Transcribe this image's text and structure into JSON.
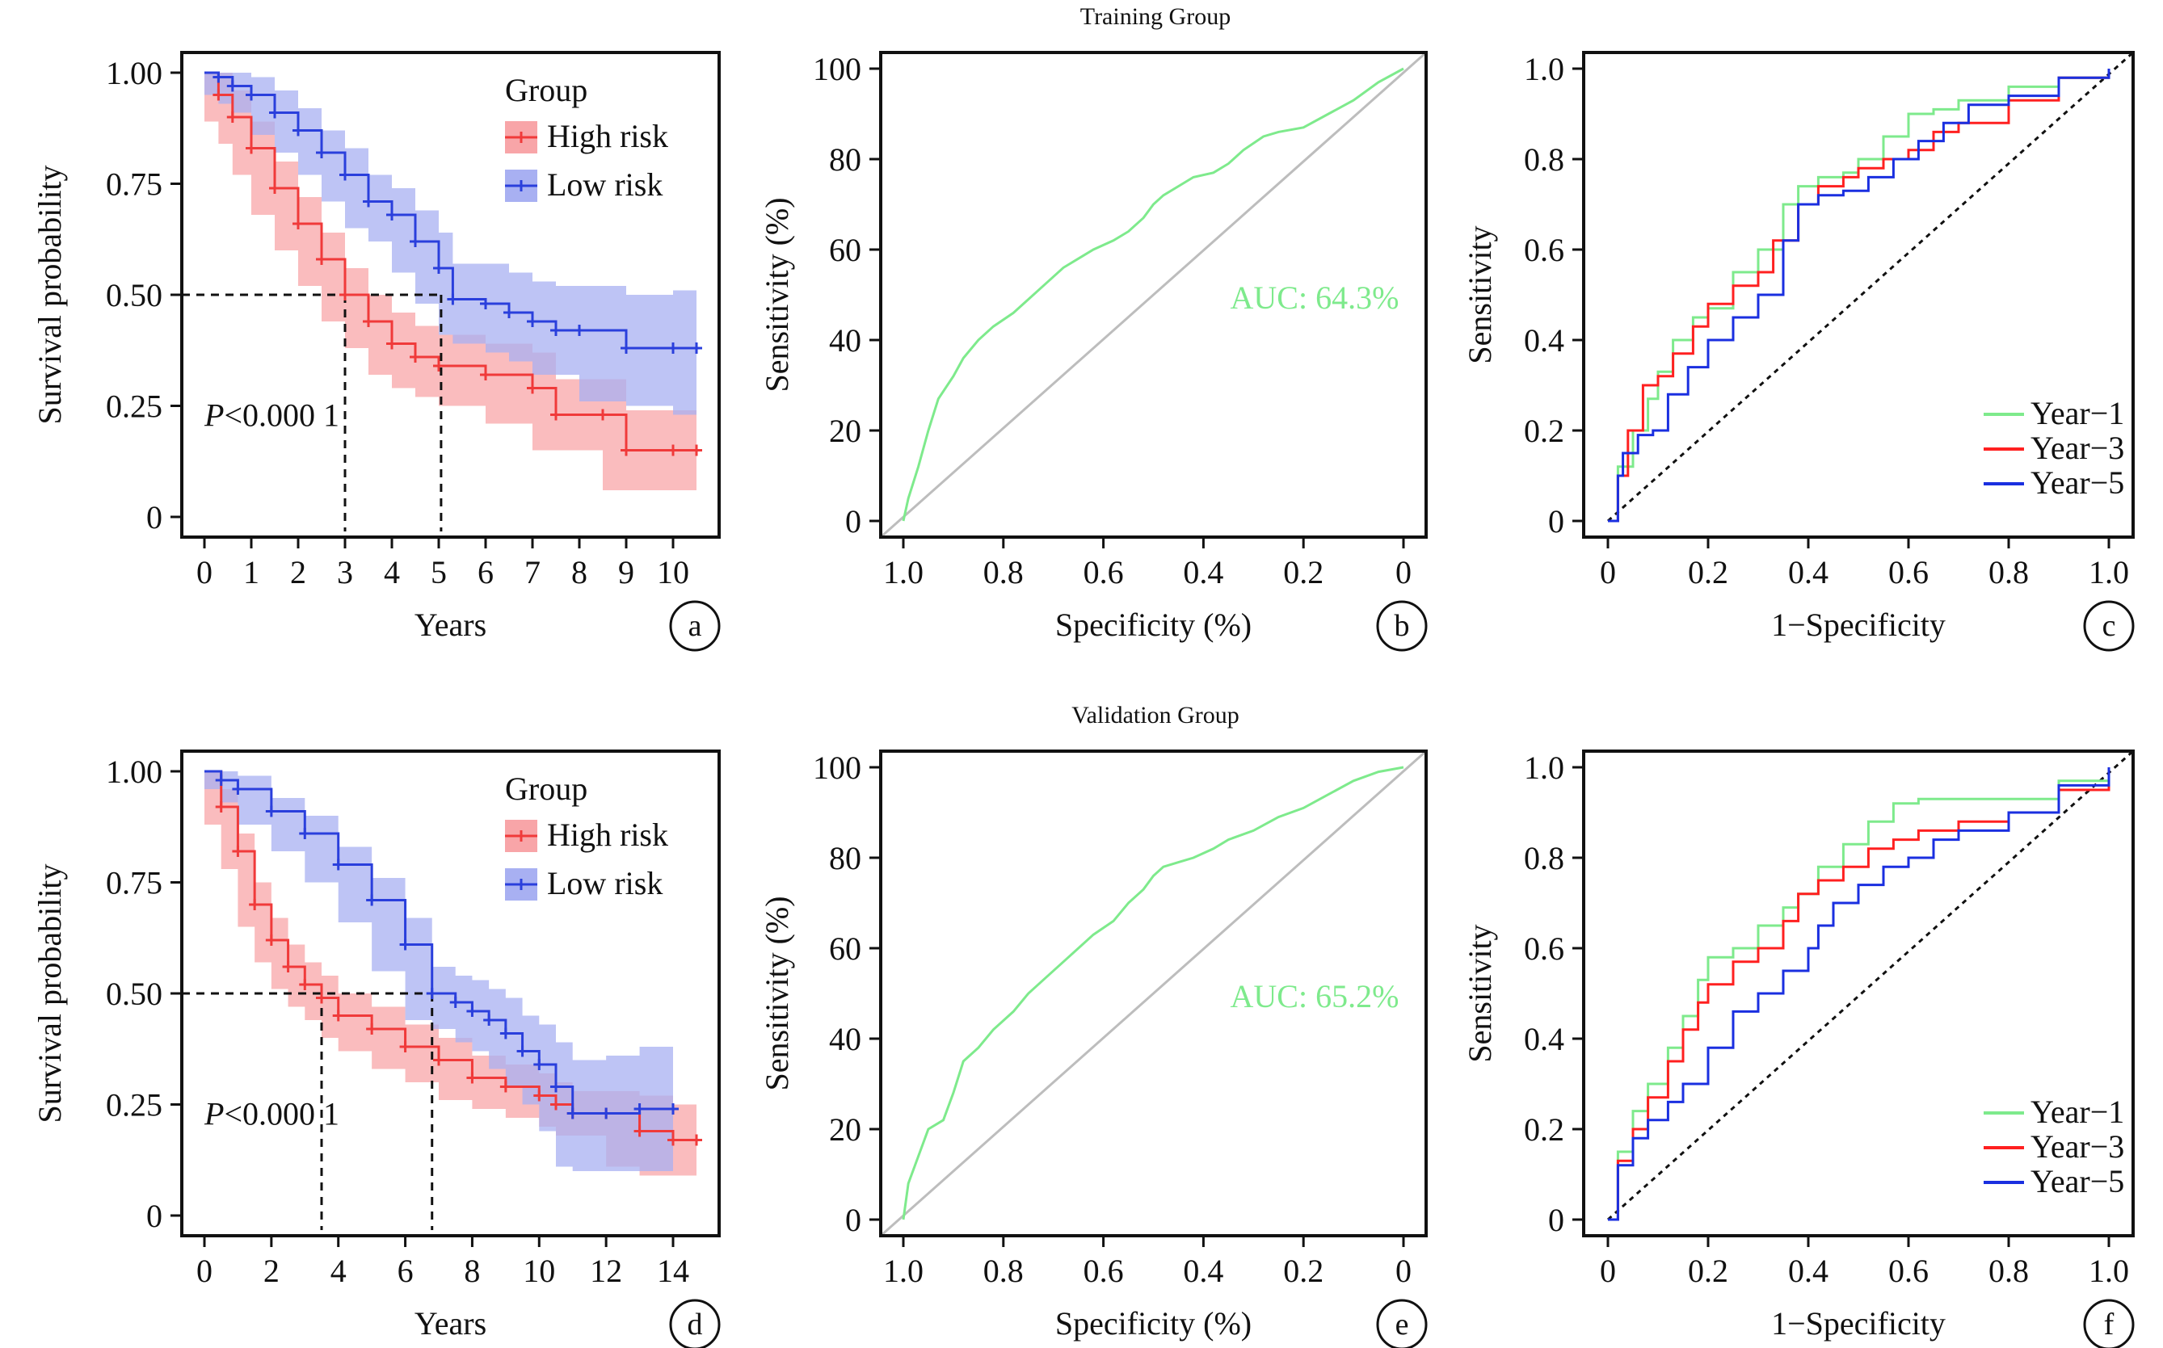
{
  "group_titles": {
    "top": "Training Group",
    "bottom": "Validation Group"
  },
  "colors": {
    "high": "#f03a3a",
    "high_band": "#f8a5a8",
    "low": "#2a3fdc",
    "low_band": "#a8b0f2",
    "overlap": "#a48fc0",
    "auc": "#7eea8c",
    "year1": "#7eea8c",
    "year3": "#ff2020",
    "year5": "#1a2fe0",
    "diag": "#bdbdbd"
  },
  "chart_data": [
    {
      "panel": "a",
      "type": "line",
      "xlabel": "Years",
      "ylabel": "Survival probability",
      "xlim": [
        0,
        10.5
      ],
      "ylim": [
        0,
        1
      ],
      "xticks": [
        0,
        1,
        2,
        3,
        4,
        5,
        6,
        7,
        8,
        9,
        10
      ],
      "xtick_labels": [
        "0",
        "1",
        "2",
        "3",
        "4",
        "5",
        "6",
        "7",
        "8",
        "9",
        "10"
      ],
      "yticks": [
        0,
        0.25,
        0.5,
        0.75,
        1
      ],
      "ytick_labels": [
        "0",
        "0.25",
        "0.50",
        "0.75",
        "1.00"
      ],
      "legend": {
        "title": "Group",
        "entries": [
          "High risk",
          "Low risk"
        ],
        "position": "top-right"
      },
      "pvalue_prefix": "P",
      "pvalue_text": "<0.000 1",
      "median_lines": [
        3.0,
        5.05
      ],
      "series": [
        {
          "name": "High risk",
          "color_key": "high",
          "x": [
            0,
            0.3,
            0.6,
            1.0,
            1.5,
            2.0,
            2.5,
            3.0,
            3.5,
            4.0,
            4.5,
            5.0,
            6.0,
            7.0,
            7.5,
            8.5,
            9.0,
            10.0,
            10.5
          ],
          "y": [
            1.0,
            0.95,
            0.9,
            0.83,
            0.74,
            0.66,
            0.58,
            0.5,
            0.44,
            0.39,
            0.36,
            0.34,
            0.32,
            0.29,
            0.23,
            0.23,
            0.15,
            0.15,
            0.15
          ],
          "band": [
            0.06,
            0.06,
            0.06,
            0.06,
            0.06,
            0.06,
            0.06,
            0.06,
            0.06,
            0.07,
            0.07,
            0.07,
            0.07,
            0.08,
            0.08,
            0.08,
            0.09,
            0.09,
            0.09
          ]
        },
        {
          "name": "Low risk",
          "color_key": "low",
          "x": [
            0,
            0.3,
            0.6,
            1.0,
            1.5,
            2.0,
            2.5,
            3.0,
            3.5,
            4.0,
            4.5,
            5.0,
            5.3,
            6.0,
            6.5,
            7.0,
            7.5,
            8.0,
            9.0,
            10.0,
            10.5
          ],
          "y": [
            1.0,
            0.99,
            0.97,
            0.95,
            0.91,
            0.87,
            0.82,
            0.77,
            0.71,
            0.68,
            0.62,
            0.56,
            0.49,
            0.48,
            0.46,
            0.44,
            0.42,
            0.42,
            0.38,
            0.38,
            0.38
          ],
          "band": [
            0.04,
            0.04,
            0.04,
            0.04,
            0.05,
            0.05,
            0.05,
            0.06,
            0.06,
            0.06,
            0.07,
            0.08,
            0.08,
            0.09,
            0.09,
            0.09,
            0.1,
            0.1,
            0.12,
            0.13,
            0.15
          ]
        }
      ]
    },
    {
      "panel": "b",
      "type": "line",
      "xlabel": "Specificity (%)",
      "ylabel": "Sensitivity (%)",
      "xlim": [
        1,
        0
      ],
      "ylim": [
        0,
        100
      ],
      "xticks": [
        1,
        0.8,
        0.6,
        0.4,
        0.2,
        0
      ],
      "xtick_labels": [
        "1.0",
        "0.8",
        "0.6",
        "0.4",
        "0.2",
        "0"
      ],
      "yticks": [
        0,
        20,
        40,
        60,
        80,
        100
      ],
      "ytick_labels": [
        "0",
        "20",
        "40",
        "60",
        "80",
        "100"
      ],
      "auc_label": "AUC: 64.3%",
      "series": [
        {
          "color_key": "auc",
          "x": [
            1.0,
            0.99,
            0.97,
            0.95,
            0.93,
            0.9,
            0.88,
            0.85,
            0.82,
            0.78,
            0.75,
            0.72,
            0.68,
            0.65,
            0.62,
            0.58,
            0.55,
            0.52,
            0.5,
            0.48,
            0.45,
            0.42,
            0.38,
            0.35,
            0.32,
            0.28,
            0.25,
            0.2,
            0.15,
            0.1,
            0.05,
            0.0
          ],
          "y": [
            0,
            5,
            12,
            20,
            27,
            32,
            36,
            40,
            43,
            46,
            49,
            52,
            56,
            58,
            60,
            62,
            64,
            67,
            70,
            72,
            74,
            76,
            77,
            79,
            82,
            85,
            86,
            87,
            90,
            93,
            97,
            100
          ]
        }
      ]
    },
    {
      "panel": "c",
      "type": "line",
      "xlabel": "1−Specificity",
      "ylabel": "Sensitivity",
      "xlim": [
        0,
        1
      ],
      "ylim": [
        0,
        1
      ],
      "xticks": [
        0,
        0.2,
        0.4,
        0.6,
        0.8,
        1
      ],
      "xtick_labels": [
        "0",
        "0.2",
        "0.4",
        "0.6",
        "0.8",
        "1.0"
      ],
      "yticks": [
        0,
        0.2,
        0.4,
        0.6,
        0.8,
        1
      ],
      "ytick_labels": [
        "0",
        "0.2",
        "0.4",
        "0.6",
        "0.8",
        "1.0"
      ],
      "legend": {
        "entries": [
          "Year−1",
          "Year−3",
          "Year−5"
        ],
        "position": "bottom-right"
      },
      "series": [
        {
          "name": "Year−1",
          "color_key": "year1",
          "x": [
            0,
            0.02,
            0.05,
            0.08,
            0.1,
            0.13,
            0.17,
            0.2,
            0.25,
            0.3,
            0.35,
            0.38,
            0.42,
            0.47,
            0.5,
            0.55,
            0.6,
            0.65,
            0.7,
            0.8,
            0.9,
            1.0
          ],
          "y": [
            0,
            0.12,
            0.2,
            0.27,
            0.33,
            0.4,
            0.45,
            0.47,
            0.55,
            0.6,
            0.7,
            0.74,
            0.76,
            0.77,
            0.8,
            0.85,
            0.9,
            0.91,
            0.93,
            0.96,
            0.98,
            1.0
          ]
        },
        {
          "name": "Year−3",
          "color_key": "year3",
          "x": [
            0,
            0.02,
            0.04,
            0.07,
            0.1,
            0.13,
            0.17,
            0.2,
            0.25,
            0.3,
            0.33,
            0.38,
            0.42,
            0.47,
            0.5,
            0.55,
            0.6,
            0.65,
            0.7,
            0.8,
            0.9,
            1.0
          ],
          "y": [
            0,
            0.1,
            0.2,
            0.3,
            0.32,
            0.37,
            0.43,
            0.48,
            0.52,
            0.55,
            0.62,
            0.7,
            0.74,
            0.76,
            0.78,
            0.8,
            0.82,
            0.86,
            0.88,
            0.93,
            0.98,
            1.0
          ]
        },
        {
          "name": "Year−5",
          "color_key": "year5",
          "x": [
            0,
            0.02,
            0.03,
            0.06,
            0.09,
            0.12,
            0.16,
            0.2,
            0.25,
            0.3,
            0.35,
            0.38,
            0.42,
            0.47,
            0.52,
            0.57,
            0.62,
            0.67,
            0.72,
            0.8,
            0.9,
            1.0
          ],
          "y": [
            0,
            0.1,
            0.15,
            0.19,
            0.2,
            0.28,
            0.34,
            0.4,
            0.45,
            0.5,
            0.62,
            0.7,
            0.72,
            0.73,
            0.76,
            0.8,
            0.84,
            0.88,
            0.92,
            0.94,
            0.98,
            1.0
          ]
        }
      ]
    },
    {
      "panel": "d",
      "type": "line",
      "xlabel": "Years",
      "ylabel": "Survival probability",
      "xlim": [
        0,
        14.7
      ],
      "ylim": [
        0,
        1
      ],
      "xticks": [
        0,
        2,
        4,
        6,
        8,
        10,
        12,
        14
      ],
      "xtick_labels": [
        "0",
        "2",
        "4",
        "6",
        "8",
        "10",
        "12",
        "14"
      ],
      "yticks": [
        0,
        0.25,
        0.5,
        0.75,
        1
      ],
      "ytick_labels": [
        "0",
        "0.25",
        "0.50",
        "0.75",
        "1.00"
      ],
      "legend": {
        "title": "Group",
        "entries": [
          "High risk",
          "Low risk"
        ],
        "position": "top-right"
      },
      "pvalue_prefix": "P",
      "pvalue_text": "<0.000 1",
      "median_lines": [
        3.5,
        6.8
      ],
      "series": [
        {
          "name": "High risk",
          "color_key": "high",
          "x": [
            0,
            0.5,
            1.0,
            1.5,
            2.0,
            2.5,
            3.0,
            3.5,
            4.0,
            5.0,
            6.0,
            7.0,
            8.0,
            9.0,
            10.0,
            10.5,
            11.0,
            12.0,
            13.0,
            14.0,
            14.7
          ],
          "y": [
            1.0,
            0.92,
            0.82,
            0.7,
            0.62,
            0.56,
            0.52,
            0.49,
            0.45,
            0.42,
            0.38,
            0.35,
            0.31,
            0.29,
            0.27,
            0.25,
            0.23,
            0.23,
            0.19,
            0.17,
            0.17
          ],
          "band": [
            0.02,
            0.04,
            0.04,
            0.05,
            0.05,
            0.05,
            0.05,
            0.05,
            0.05,
            0.05,
            0.05,
            0.05,
            0.05,
            0.05,
            0.05,
            0.05,
            0.05,
            0.05,
            0.08,
            0.08,
            0.08
          ]
        },
        {
          "name": "Low risk",
          "color_key": "low",
          "x": [
            0,
            0.5,
            1.0,
            2.0,
            3.0,
            4.0,
            5.0,
            6.0,
            6.8,
            7.5,
            8.0,
            8.5,
            9.0,
            9.5,
            10.0,
            10.5,
            11.0,
            12.0,
            13.0,
            14.0
          ],
          "y": [
            1.0,
            0.98,
            0.96,
            0.91,
            0.86,
            0.79,
            0.71,
            0.61,
            0.5,
            0.48,
            0.46,
            0.44,
            0.41,
            0.37,
            0.34,
            0.29,
            0.23,
            0.23,
            0.24,
            0.24
          ],
          "band": [
            0.02,
            0.02,
            0.03,
            0.03,
            0.04,
            0.04,
            0.05,
            0.06,
            0.06,
            0.06,
            0.07,
            0.07,
            0.08,
            0.08,
            0.09,
            0.1,
            0.12,
            0.13,
            0.14,
            0.14
          ]
        }
      ]
    },
    {
      "panel": "e",
      "type": "line",
      "xlabel": "Specificity (%)",
      "ylabel": "Sensitivity (%)",
      "xlim": [
        1,
        0
      ],
      "ylim": [
        0,
        100
      ],
      "xticks": [
        1,
        0.8,
        0.6,
        0.4,
        0.2,
        0
      ],
      "xtick_labels": [
        "1.0",
        "0.8",
        "0.6",
        "0.4",
        "0.2",
        "0"
      ],
      "yticks": [
        0,
        20,
        40,
        60,
        80,
        100
      ],
      "ytick_labels": [
        "0",
        "20",
        "40",
        "60",
        "80",
        "100"
      ],
      "auc_label": "AUC: 65.2%",
      "series": [
        {
          "color_key": "auc",
          "x": [
            1.0,
            0.99,
            0.97,
            0.95,
            0.92,
            0.9,
            0.88,
            0.85,
            0.82,
            0.8,
            0.78,
            0.75,
            0.72,
            0.68,
            0.65,
            0.62,
            0.58,
            0.55,
            0.52,
            0.5,
            0.48,
            0.45,
            0.42,
            0.38,
            0.35,
            0.3,
            0.25,
            0.2,
            0.15,
            0.1,
            0.05,
            0.0
          ],
          "y": [
            0,
            8,
            14,
            20,
            22,
            28,
            35,
            38,
            42,
            44,
            46,
            50,
            53,
            57,
            60,
            63,
            66,
            70,
            73,
            76,
            78,
            79,
            80,
            82,
            84,
            86,
            89,
            91,
            94,
            97,
            99,
            100
          ]
        }
      ]
    },
    {
      "panel": "f",
      "type": "line",
      "xlabel": "1−Specificity",
      "ylabel": "Sensitivity",
      "xlim": [
        0,
        1
      ],
      "ylim": [
        0,
        1
      ],
      "xticks": [
        0,
        0.2,
        0.4,
        0.6,
        0.8,
        1
      ],
      "xtick_labels": [
        "0",
        "0.2",
        "0.4",
        "0.6",
        "0.8",
        "1.0"
      ],
      "yticks": [
        0,
        0.2,
        0.4,
        0.6,
        0.8,
        1
      ],
      "ytick_labels": [
        "0",
        "0.2",
        "0.4",
        "0.6",
        "0.8",
        "1.0"
      ],
      "legend": {
        "entries": [
          "Year−1",
          "Year−3",
          "Year−5"
        ],
        "position": "bottom-right"
      },
      "series": [
        {
          "name": "Year−1",
          "color_key": "year1",
          "x": [
            0,
            0.02,
            0.05,
            0.08,
            0.12,
            0.15,
            0.18,
            0.2,
            0.25,
            0.3,
            0.35,
            0.38,
            0.42,
            0.47,
            0.52,
            0.57,
            0.62,
            0.7,
            0.8,
            0.9,
            1.0
          ],
          "y": [
            0,
            0.15,
            0.24,
            0.3,
            0.38,
            0.45,
            0.53,
            0.58,
            0.6,
            0.65,
            0.69,
            0.72,
            0.78,
            0.83,
            0.88,
            0.92,
            0.93,
            0.93,
            0.93,
            0.97,
            1.0
          ]
        },
        {
          "name": "Year−3",
          "color_key": "year3",
          "x": [
            0,
            0.02,
            0.05,
            0.08,
            0.12,
            0.15,
            0.18,
            0.2,
            0.25,
            0.3,
            0.35,
            0.38,
            0.42,
            0.47,
            0.52,
            0.57,
            0.62,
            0.7,
            0.8,
            0.9,
            1.0
          ],
          "y": [
            0,
            0.13,
            0.2,
            0.27,
            0.35,
            0.42,
            0.48,
            0.52,
            0.57,
            0.6,
            0.66,
            0.72,
            0.75,
            0.78,
            0.82,
            0.84,
            0.86,
            0.88,
            0.9,
            0.95,
            1.0
          ]
        },
        {
          "name": "Year−5",
          "color_key": "year5",
          "x": [
            0,
            0.02,
            0.05,
            0.08,
            0.12,
            0.15,
            0.2,
            0.25,
            0.3,
            0.35,
            0.4,
            0.42,
            0.45,
            0.5,
            0.55,
            0.6,
            0.65,
            0.7,
            0.8,
            0.9,
            1.0
          ],
          "y": [
            0,
            0.12,
            0.18,
            0.22,
            0.26,
            0.3,
            0.38,
            0.46,
            0.5,
            0.55,
            0.6,
            0.65,
            0.7,
            0.74,
            0.78,
            0.8,
            0.84,
            0.86,
            0.9,
            0.96,
            1.0
          ]
        }
      ]
    }
  ]
}
